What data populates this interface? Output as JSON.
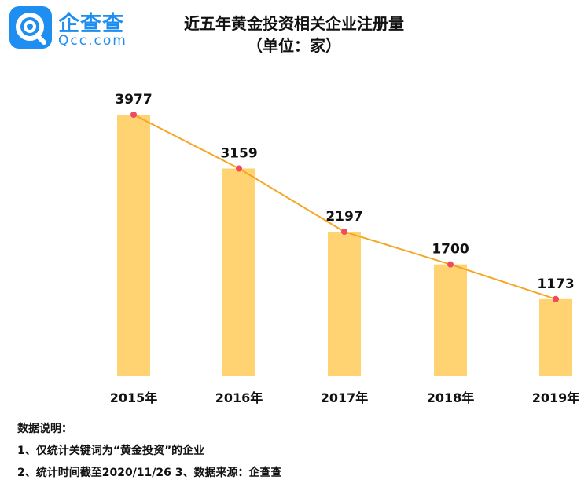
{
  "logo": {
    "cn": "企查查",
    "en": "Qcc.com",
    "icon": "qcc-logo-icon",
    "color": "#1f8ef1"
  },
  "chart_data": {
    "type": "bar",
    "title": "近五年黄金投资相关企业注册量",
    "subtitle": "（单位：家）",
    "categories": [
      "2015年",
      "2016年",
      "2017年",
      "2018年",
      "2019年"
    ],
    "values": [
      3977,
      3159,
      2197,
      1700,
      1173
    ],
    "overlay_line": true,
    "ylim": [
      0,
      4000
    ],
    "grid": false,
    "bar_color": "#ffd272",
    "line_color": "#f5a623",
    "point_color": "#ef4a60"
  },
  "notes": {
    "heading": "数据说明：",
    "line1": "1、仅统计关键词为“黄金投资”的企业",
    "line2": "2、统计时间截至2020/11/26  3、数据来源：企查查"
  }
}
